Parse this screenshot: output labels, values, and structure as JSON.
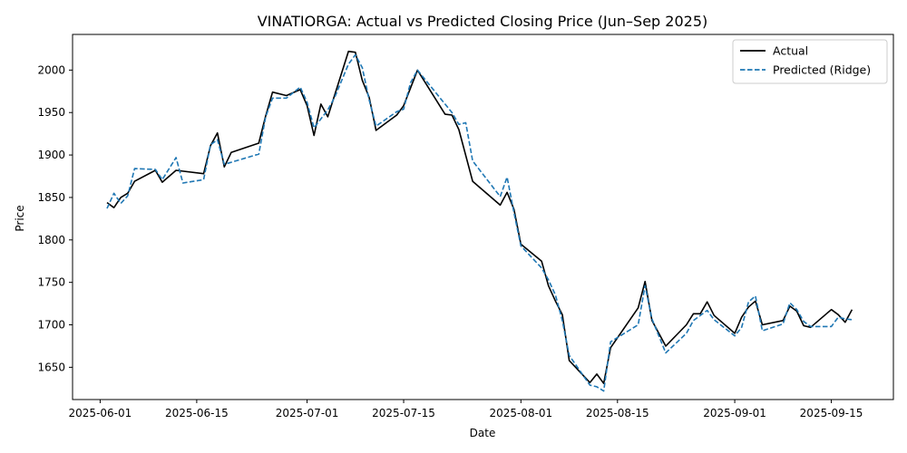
{
  "chart_data": {
    "type": "line",
    "title": "VINATIORGA: Actual vs Predicted Closing Price (Jun–Sep 2025)",
    "xlabel": "Date",
    "ylabel": "Price",
    "x_tick_labels": [
      "2025-06-01",
      "2025-06-15",
      "2025-07-01",
      "2025-07-15",
      "2025-08-01",
      "2025-08-15",
      "2025-09-01",
      "2025-09-15"
    ],
    "y_ticks": [
      1650,
      1700,
      1750,
      1800,
      1850,
      1900,
      1950,
      2000
    ],
    "xlim": [
      "2025-05-28",
      "2025-09-24"
    ],
    "ylim": [
      1612,
      2042
    ],
    "grid": false,
    "legend_position": "top-right",
    "series": [
      {
        "name": "Actual",
        "color": "#000000",
        "style": "solid",
        "points": [
          [
            "2025-06-02",
            1844
          ],
          [
            "2025-06-03",
            1838
          ],
          [
            "2025-06-04",
            1850
          ],
          [
            "2025-06-05",
            1855
          ],
          [
            "2025-06-06",
            1869
          ],
          [
            "2025-06-09",
            1882
          ],
          [
            "2025-06-10",
            1868
          ],
          [
            "2025-06-12",
            1882
          ],
          [
            "2025-06-16",
            1878
          ],
          [
            "2025-06-17",
            1911
          ],
          [
            "2025-06-18",
            1926
          ],
          [
            "2025-06-19",
            1886
          ],
          [
            "2025-06-20",
            1903
          ],
          [
            "2025-06-24",
            1914
          ],
          [
            "2025-06-25",
            1946
          ],
          [
            "2025-06-26",
            1974
          ],
          [
            "2025-06-28",
            1970
          ],
          [
            "2025-06-30",
            1977
          ],
          [
            "2025-07-01",
            1958
          ],
          [
            "2025-07-02",
            1923
          ],
          [
            "2025-07-03",
            1960
          ],
          [
            "2025-07-04",
            1945
          ],
          [
            "2025-07-07",
            2022
          ],
          [
            "2025-07-08",
            2021
          ],
          [
            "2025-07-09",
            1988
          ],
          [
            "2025-07-10",
            1968
          ],
          [
            "2025-07-11",
            1929
          ],
          [
            "2025-07-14",
            1947
          ],
          [
            "2025-07-15",
            1958
          ],
          [
            "2025-07-17",
            2000
          ],
          [
            "2025-07-21",
            1948
          ],
          [
            "2025-07-22",
            1947
          ],
          [
            "2025-07-23",
            1930
          ],
          [
            "2025-07-25",
            1869
          ],
          [
            "2025-07-29",
            1841
          ],
          [
            "2025-07-30",
            1856
          ],
          [
            "2025-07-31",
            1836
          ],
          [
            "2025-08-01",
            1795
          ],
          [
            "2025-08-04",
            1775
          ],
          [
            "2025-08-05",
            1746
          ],
          [
            "2025-08-06",
            1728
          ],
          [
            "2025-08-07",
            1712
          ],
          [
            "2025-08-08",
            1658
          ],
          [
            "2025-08-11",
            1632
          ],
          [
            "2025-08-12",
            1642
          ],
          [
            "2025-08-13",
            1631
          ],
          [
            "2025-08-14",
            1673
          ],
          [
            "2025-08-18",
            1720
          ],
          [
            "2025-08-19",
            1751
          ],
          [
            "2025-08-20",
            1705
          ],
          [
            "2025-08-22",
            1675
          ],
          [
            "2025-08-25",
            1700
          ],
          [
            "2025-08-26",
            1713
          ],
          [
            "2025-08-27",
            1713
          ],
          [
            "2025-08-28",
            1727
          ],
          [
            "2025-08-29",
            1711
          ],
          [
            "2025-09-01",
            1690
          ],
          [
            "2025-09-02",
            1709
          ],
          [
            "2025-09-03",
            1721
          ],
          [
            "2025-09-04",
            1728
          ],
          [
            "2025-09-05",
            1700
          ],
          [
            "2025-09-08",
            1705
          ],
          [
            "2025-09-09",
            1722
          ],
          [
            "2025-09-10",
            1716
          ],
          [
            "2025-09-11",
            1699
          ],
          [
            "2025-09-12",
            1697
          ],
          [
            "2025-09-15",
            1718
          ],
          [
            "2025-09-16",
            1712
          ],
          [
            "2025-09-17",
            1703
          ],
          [
            "2025-09-18",
            1718
          ]
        ]
      },
      {
        "name": "Predicted (Ridge)",
        "color": "#1f77b4",
        "style": "dashed",
        "points": [
          [
            "2025-06-02",
            1837
          ],
          [
            "2025-06-03",
            1855
          ],
          [
            "2025-06-04",
            1843
          ],
          [
            "2025-06-05",
            1852
          ],
          [
            "2025-06-06",
            1884
          ],
          [
            "2025-06-09",
            1883
          ],
          [
            "2025-06-10",
            1871
          ],
          [
            "2025-06-12",
            1897
          ],
          [
            "2025-06-13",
            1867
          ],
          [
            "2025-06-16",
            1871
          ],
          [
            "2025-06-17",
            1912
          ],
          [
            "2025-06-18",
            1918
          ],
          [
            "2025-06-19",
            1889
          ],
          [
            "2025-06-24",
            1901
          ],
          [
            "2025-06-25",
            1945
          ],
          [
            "2025-06-26",
            1967
          ],
          [
            "2025-06-28",
            1967
          ],
          [
            "2025-06-30",
            1980
          ],
          [
            "2025-07-01",
            1962
          ],
          [
            "2025-07-02",
            1932
          ],
          [
            "2025-07-04",
            1953
          ],
          [
            "2025-07-05",
            1968
          ],
          [
            "2025-07-07",
            2007
          ],
          [
            "2025-07-08",
            2018
          ],
          [
            "2025-07-09",
            2003
          ],
          [
            "2025-07-10",
            1965
          ],
          [
            "2025-07-11",
            1934
          ],
          [
            "2025-07-14",
            1951
          ],
          [
            "2025-07-15",
            1954
          ],
          [
            "2025-07-16",
            1985
          ],
          [
            "2025-07-17",
            2000
          ],
          [
            "2025-07-21",
            1960
          ],
          [
            "2025-07-22",
            1950
          ],
          [
            "2025-07-23",
            1936
          ],
          [
            "2025-07-24",
            1938
          ],
          [
            "2025-07-25",
            1893
          ],
          [
            "2025-07-29",
            1851
          ],
          [
            "2025-07-30",
            1874
          ],
          [
            "2025-07-31",
            1832
          ],
          [
            "2025-08-01",
            1793
          ],
          [
            "2025-08-04",
            1767
          ],
          [
            "2025-08-05",
            1753
          ],
          [
            "2025-08-06",
            1735
          ],
          [
            "2025-08-07",
            1705
          ],
          [
            "2025-08-08",
            1664
          ],
          [
            "2025-08-11",
            1629
          ],
          [
            "2025-08-12",
            1627
          ],
          [
            "2025-08-13",
            1622
          ],
          [
            "2025-08-14",
            1680
          ],
          [
            "2025-08-18",
            1700
          ],
          [
            "2025-08-19",
            1746
          ],
          [
            "2025-08-20",
            1707
          ],
          [
            "2025-08-22",
            1667
          ],
          [
            "2025-08-25",
            1690
          ],
          [
            "2025-08-26",
            1705
          ],
          [
            "2025-08-28",
            1717
          ],
          [
            "2025-08-29",
            1706
          ],
          [
            "2025-09-01",
            1687
          ],
          [
            "2025-09-02",
            1697
          ],
          [
            "2025-09-03",
            1727
          ],
          [
            "2025-09-04",
            1734
          ],
          [
            "2025-09-05",
            1693
          ],
          [
            "2025-09-08",
            1701
          ],
          [
            "2025-09-09",
            1726
          ],
          [
            "2025-09-10",
            1718
          ],
          [
            "2025-09-11",
            1704
          ],
          [
            "2025-09-12",
            1698
          ],
          [
            "2025-09-15",
            1698
          ],
          [
            "2025-09-16",
            1709
          ],
          [
            "2025-09-17",
            1707
          ],
          [
            "2025-09-18",
            1706
          ]
        ]
      }
    ]
  }
}
